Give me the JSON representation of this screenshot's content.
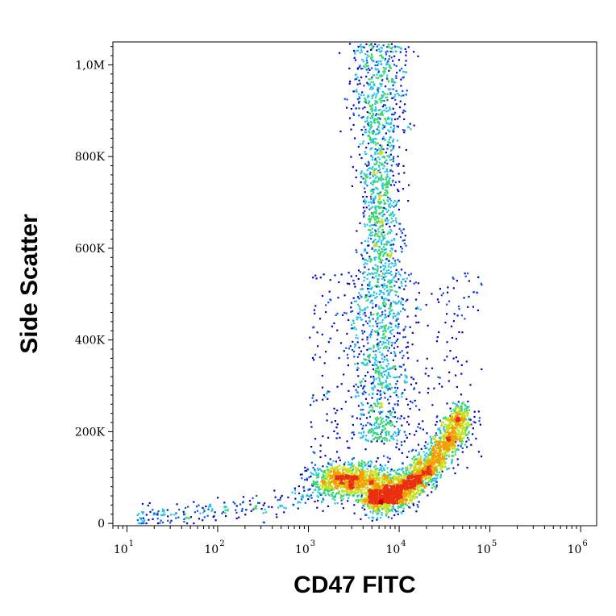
{
  "chart_data": {
    "type": "scatter",
    "style": "flow cytometry density dot plot",
    "xlabel": "CD47 FITC",
    "ylabel": "Side Scatter",
    "x_scale": "log",
    "xlim": [
      7,
      1500000
    ],
    "ylim": [
      -5000,
      1050000
    ],
    "x_ticks": [
      {
        "value": 10,
        "base": "10",
        "exp": "1"
      },
      {
        "value": 100,
        "base": "10",
        "exp": "2"
      },
      {
        "value": 1000,
        "base": "10",
        "exp": "3"
      },
      {
        "value": 10000,
        "base": "10",
        "exp": "4"
      },
      {
        "value": 100000,
        "base": "10",
        "exp": "5"
      },
      {
        "value": 1000000,
        "base": "10",
        "exp": "6"
      }
    ],
    "y_ticks": [
      {
        "value": 0,
        "label": "0"
      },
      {
        "value": 200000,
        "label": "200K"
      },
      {
        "value": 400000,
        "label": "400K"
      },
      {
        "value": 600000,
        "label": "600K"
      },
      {
        "value": 800000,
        "label": "800K"
      },
      {
        "value": 1000000,
        "label": "1,0M"
      }
    ],
    "density_colors": [
      "#0000c8",
      "#0a4fe6",
      "#21c4e8",
      "#36d86e",
      "#c6e020",
      "#f0a000",
      "#e83010",
      "#c80000"
    ],
    "populations": [
      {
        "name": "main",
        "x_center": 15000,
        "y_center": 90000,
        "note": "dense curved population rising toward high FITC"
      },
      {
        "name": "low",
        "x_center": 3000,
        "y_center": 95000
      },
      {
        "name": "granular",
        "x_center": 6000,
        "y_center": 700000
      },
      {
        "name": "tail",
        "x_center": 100,
        "y_center": 20000
      }
    ],
    "grid": false,
    "legend": "none"
  }
}
